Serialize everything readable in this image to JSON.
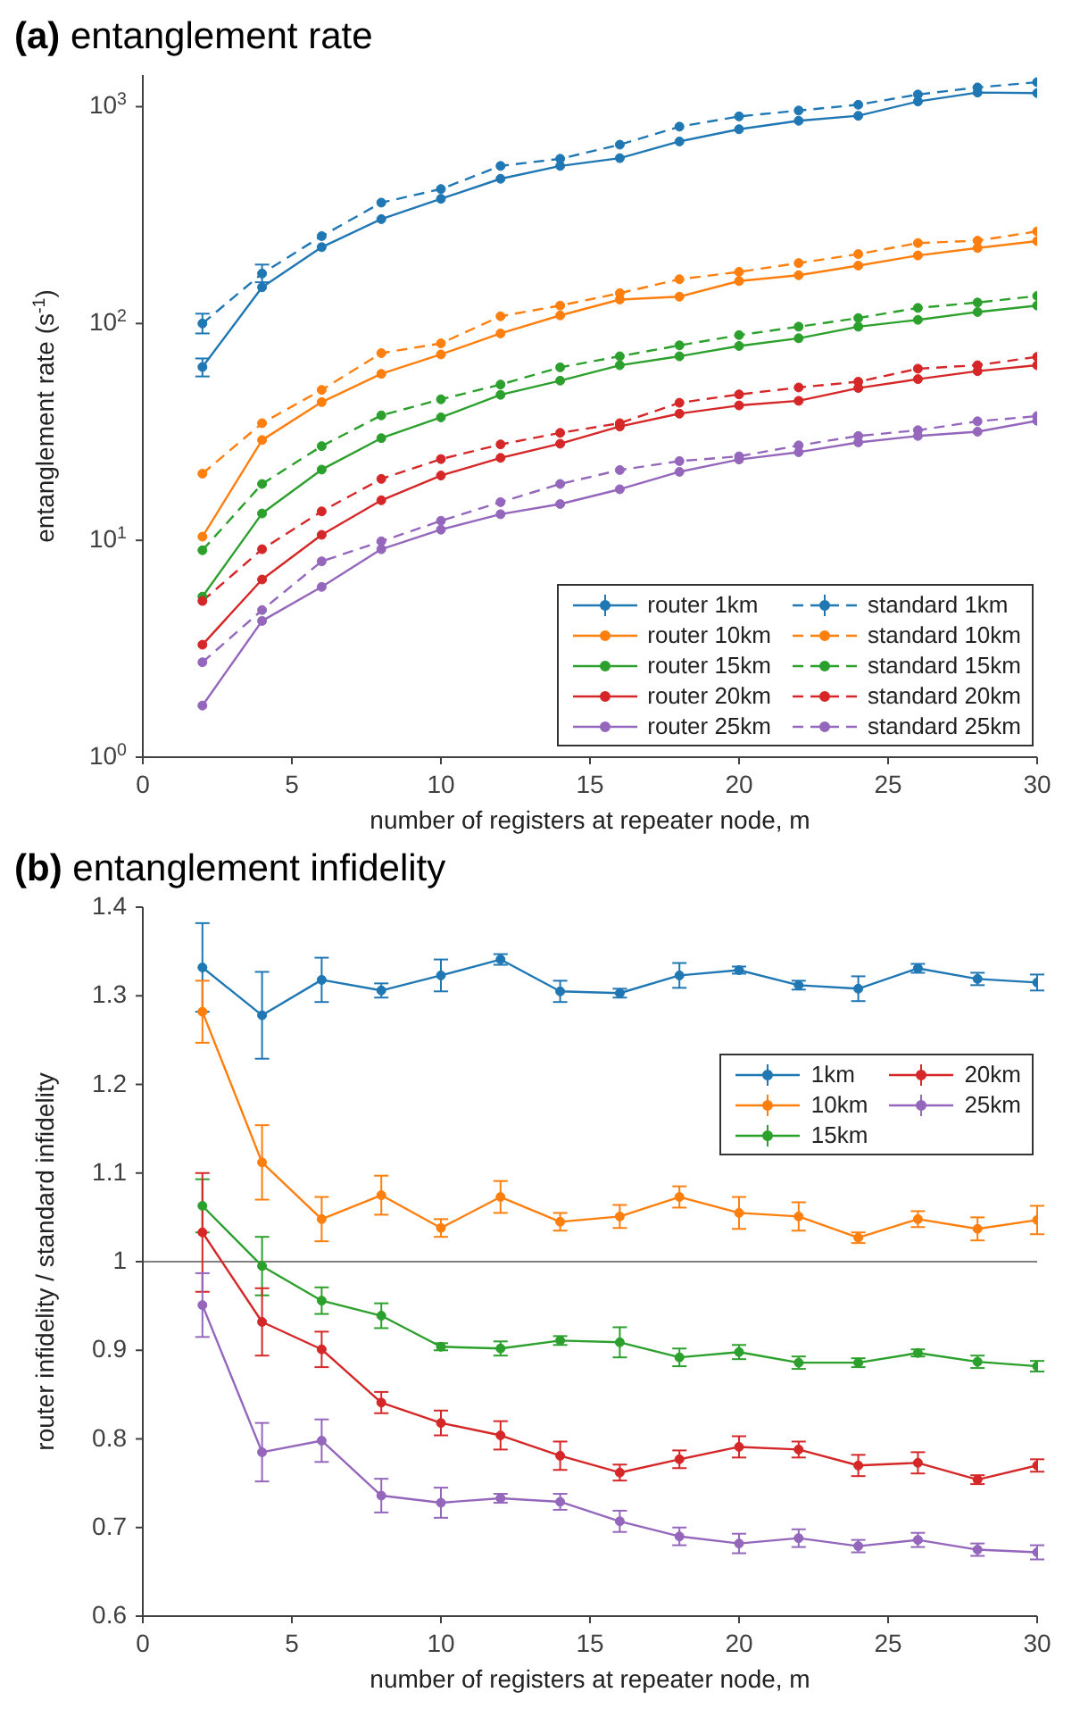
{
  "chart_data": [
    {
      "type": "line",
      "title": "(a) entanglement rate",
      "xlabel": "number of registers at repeater node, m",
      "ylabel": "entanglement rate (s$^{-1}$)",
      "log": "y",
      "marker": "circle",
      "legend": "bottom right",
      "x": [
        2,
        4,
        6,
        8,
        10,
        12,
        14,
        16,
        18,
        20,
        22,
        24,
        26,
        28,
        30
      ],
      "xlim": [
        0,
        30
      ],
      "xticks": [
        0,
        5,
        10,
        15,
        20,
        25,
        30
      ],
      "ylim": [
        1,
        1400
      ],
      "yticks": [
        {
          "value": 1,
          "label": "10$^{0}$"
        },
        {
          "value": 10,
          "label": "10$^{1}$"
        },
        {
          "value": 100,
          "label": "10$^{2}$"
        },
        {
          "value": 1000,
          "label": "10$^{3}$"
        }
      ],
      "series": [
        {
          "name": "router 1km",
          "color": "#1f77b4",
          "line_style": "solid",
          "values": [
            63,
            147,
            225,
            303,
            376,
            465,
            533,
            579,
            691,
            787,
            861,
            908,
            1057,
            1162,
            1155
          ],
          "errors": [
            [
              57,
              69
            ],
            null,
            null,
            null,
            null,
            null,
            null,
            null,
            null,
            null,
            null,
            null,
            null,
            null,
            null
          ]
        },
        {
          "name": "router 10km",
          "color": "#ff7f0e",
          "line_style": "solid",
          "values": [
            10.4,
            29,
            43.4,
            58.6,
            72,
            90,
            109,
            129,
            133,
            157,
            167,
            185,
            206,
            223,
            240
          ]
        },
        {
          "name": "router 15km",
          "color": "#2ca02c",
          "line_style": "solid",
          "values": [
            5.5,
            13.3,
            21.2,
            29.6,
            36.9,
            46.9,
            54.5,
            64.2,
            70.6,
            78.8,
            85.5,
            96.7,
            104,
            113,
            121
          ]
        },
        {
          "name": "router 20km",
          "color": "#d62728",
          "line_style": "solid",
          "values": [
            3.3,
            6.6,
            10.6,
            15.3,
            19.9,
            24,
            27.9,
            33.5,
            38.4,
            41.9,
            44,
            50.4,
            55.4,
            60.3,
            64.2
          ]
        },
        {
          "name": "router 25km",
          "color": "#9467bd",
          "line_style": "solid",
          "values": [
            1.73,
            4.25,
            6.1,
            9.1,
            11.2,
            13.2,
            14.7,
            17.2,
            20.7,
            23.6,
            25.5,
            28.3,
            30.3,
            31.7,
            35.6
          ]
        },
        {
          "name": "standard 1km",
          "color": "#1f77b4",
          "line_style": "dashed",
          "values": [
            100,
            170,
            253,
            361,
            417,
            533,
            575,
            668,
            809,
            902,
            960,
            1021,
            1138,
            1227,
            1297
          ],
          "errors": [
            [
              90,
              111
            ],
            [
              155,
              187
            ],
            null,
            null,
            null,
            null,
            null,
            null,
            null,
            null,
            null,
            null,
            null,
            null,
            null
          ]
        },
        {
          "name": "standard 10km",
          "color": "#ff7f0e",
          "line_style": "dashed",
          "values": [
            20.3,
            34.7,
            49.4,
            73,
            81,
            108,
            121,
            138,
            160,
            173,
            190,
            209,
            235,
            241,
            266
          ]
        },
        {
          "name": "standard 15km",
          "color": "#2ca02c",
          "line_style": "dashed",
          "values": [
            9,
            18.2,
            27.2,
            37.7,
            44.7,
            52.3,
            62.8,
            70.6,
            79.3,
            88.4,
            96.7,
            106,
            118,
            125,
            134
          ]
        },
        {
          "name": "standard 20km",
          "color": "#d62728",
          "line_style": "dashed",
          "values": [
            5.25,
            9.1,
            13.6,
            19.2,
            23.7,
            27.7,
            31.3,
            34.7,
            43.1,
            47.1,
            50.7,
            53.9,
            61.9,
            64.2,
            70.2
          ]
        },
        {
          "name": "standard 25km",
          "color": "#9467bd",
          "line_style": "dashed",
          "values": [
            2.74,
            4.77,
            8,
            9.9,
            12.3,
            15,
            18.2,
            21.1,
            23.2,
            24.4,
            27.4,
            30.3,
            32.2,
            35.4,
            37.4
          ]
        }
      ]
    },
    {
      "type": "line",
      "title": "(b) entanglement infidelity",
      "xlabel": "number of registers at repeater node, m",
      "ylabel": "router infidelity / standard infidelity",
      "marker": "circle",
      "legend": "top right",
      "x": [
        2,
        4,
        6,
        8,
        10,
        12,
        14,
        16,
        18,
        20,
        22,
        24,
        26,
        28,
        30
      ],
      "xlim": [
        0,
        30
      ],
      "xticks": [
        0,
        5,
        10,
        15,
        20,
        25,
        30
      ],
      "ylim": [
        0.6,
        1.4
      ],
      "yticks": [
        0.6,
        0.7,
        0.8,
        0.9,
        1,
        1.1,
        1.2,
        1.3,
        1.4
      ],
      "ref_lines": [
        {
          "axis": "y",
          "value": 1,
          "color": "#808080"
        }
      ],
      "series": [
        {
          "name": "1km",
          "color": "#1f77b4",
          "values": [
            1.332,
            1.278,
            1.318,
            1.306,
            1.323,
            1.341,
            1.305,
            1.303,
            1.323,
            1.329,
            1.312,
            1.308,
            1.331,
            1.319,
            1.315
          ],
          "errors": [
            0.05,
            0.049,
            0.025,
            0.008,
            0.018,
            0.006,
            0.012,
            0.005,
            0.014,
            0.004,
            0.005,
            0.014,
            0.005,
            0.007,
            0.009
          ]
        },
        {
          "name": "10km",
          "color": "#ff7f0e",
          "values": [
            1.282,
            1.112,
            1.048,
            1.075,
            1.038,
            1.073,
            1.045,
            1.051,
            1.073,
            1.055,
            1.051,
            1.027,
            1.048,
            1.037,
            1.047
          ],
          "errors": [
            0.035,
            0.042,
            0.025,
            0.022,
            0.01,
            0.018,
            0.01,
            0.013,
            0.012,
            0.018,
            0.016,
            0.006,
            0.009,
            0.013,
            0.016
          ]
        },
        {
          "name": "15km",
          "color": "#2ca02c",
          "values": [
            1.063,
            0.995,
            0.956,
            0.939,
            0.904,
            0.902,
            0.911,
            0.909,
            0.892,
            0.898,
            0.886,
            0.886,
            0.897,
            0.887,
            0.882
          ],
          "errors": [
            0.03,
            0.033,
            0.015,
            0.014,
            0.004,
            0.008,
            0.005,
            0.017,
            0.01,
            0.008,
            0.007,
            0.005,
            0.004,
            0.007,
            0.006
          ]
        },
        {
          "name": "20km",
          "color": "#d62728",
          "values": [
            1.033,
            0.932,
            0.901,
            0.841,
            0.818,
            0.804,
            0.781,
            0.762,
            0.777,
            0.791,
            0.788,
            0.77,
            0.773,
            0.754,
            0.77
          ],
          "errors": [
            0.067,
            0.038,
            0.02,
            0.012,
            0.014,
            0.016,
            0.016,
            0.009,
            0.01,
            0.012,
            0.009,
            0.012,
            0.012,
            0.005,
            0.007
          ]
        },
        {
          "name": "25km",
          "color": "#9467bd",
          "values": [
            0.951,
            0.785,
            0.798,
            0.736,
            0.728,
            0.733,
            0.729,
            0.707,
            0.69,
            0.682,
            0.688,
            0.679,
            0.686,
            0.675,
            0.672
          ],
          "errors": [
            0.036,
            0.033,
            0.024,
            0.019,
            0.017,
            0.005,
            0.009,
            0.012,
            0.01,
            0.011,
            0.01,
            0.007,
            0.008,
            0.007,
            0.008
          ]
        }
      ]
    }
  ]
}
